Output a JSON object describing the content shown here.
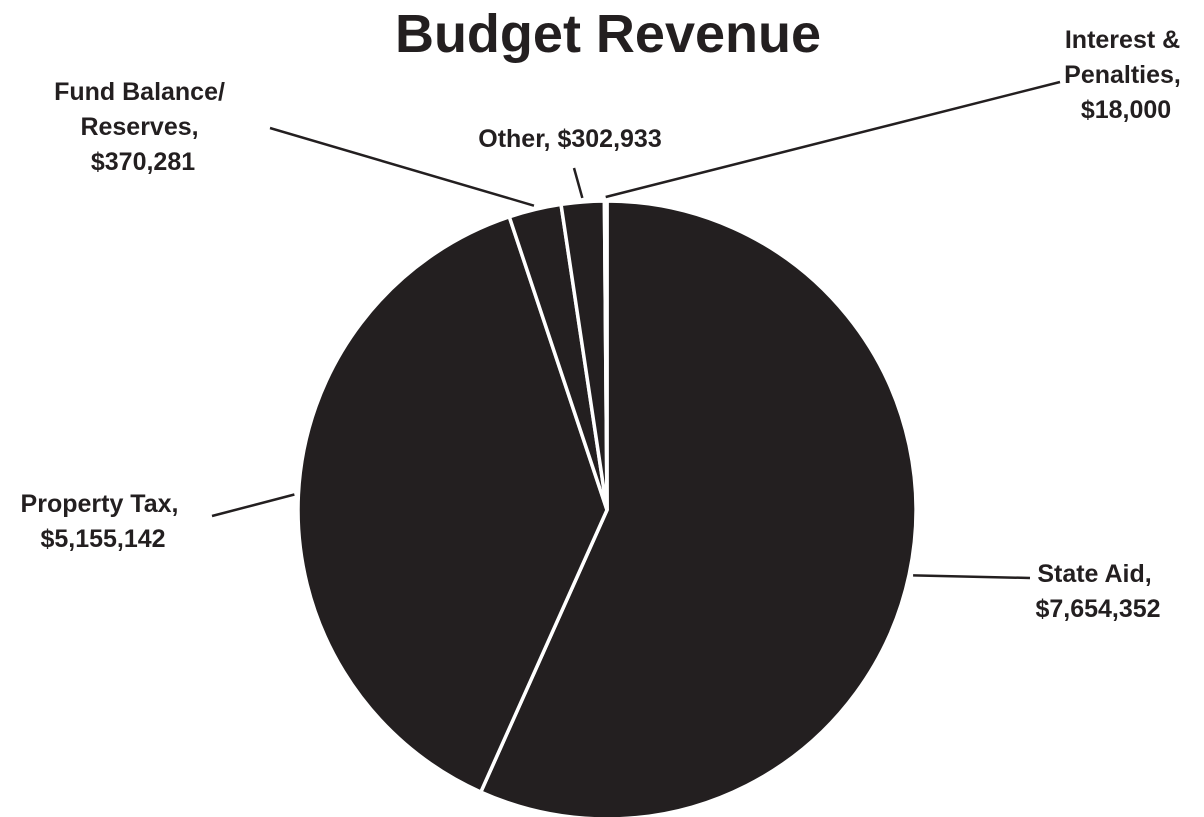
{
  "chart_data": {
    "type": "pie",
    "title": "Budget Revenue",
    "slice_color": "#231f20",
    "separator_color": "#ffffff",
    "slices": [
      {
        "name": "State Aid",
        "value": 7654352,
        "label_lines": [
          "State Aid,",
          "$7,654,352"
        ]
      },
      {
        "name": "Property Tax",
        "value": 5155142,
        "label_lines": [
          "Property Tax,",
          "$5,155,142"
        ]
      },
      {
        "name": "Fund Balance/ Reserves",
        "value": 370281,
        "label_lines": [
          "Fund Balance/",
          "Reserves,",
          "$370,281"
        ]
      },
      {
        "name": "Other",
        "value": 302933,
        "label_lines": [
          "Other, $302,933"
        ]
      },
      {
        "name": "Interest & Penalties",
        "value": 18000,
        "label_lines": [
          "Interest &",
          "Penalties,",
          "$18,000"
        ]
      }
    ]
  }
}
